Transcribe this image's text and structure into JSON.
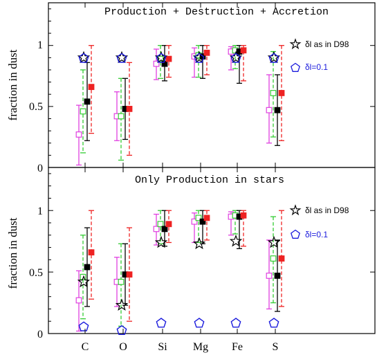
{
  "chart_data": [
    {
      "type": "scatter",
      "title": "Production + Destruction + Accretion",
      "ylabel": "fraction in dust",
      "ylim": [
        0,
        1.35
      ],
      "yticks": [
        "0",
        "0.5",
        "1"
      ],
      "categories": [
        "C",
        "O",
        "Si",
        "Mg",
        "Fe",
        "S"
      ],
      "series": [
        {
          "key": "magenta",
          "color": "#e040e0",
          "dash": false,
          "values": [
            0.27,
            0.42,
            0.85,
            0.91,
            0.95,
            0.47
          ],
          "low": [
            0.02,
            0.22,
            0.72,
            0.74,
            0.8,
            0.2
          ],
          "high": [
            0.51,
            0.62,
            0.97,
            0.98,
            0.99,
            0.76
          ]
        },
        {
          "key": "green",
          "color": "#33cc33",
          "dash": true,
          "values": [
            0.46,
            0.42,
            0.89,
            0.92,
            0.96,
            0.61
          ],
          "low": [
            0.12,
            0.06,
            0.73,
            0.74,
            0.81,
            0.25
          ],
          "high": [
            0.8,
            0.73,
            1.0,
            1.0,
            1.0,
            0.95
          ]
        },
        {
          "key": "black",
          "color": "#000000",
          "dash": false,
          "values": [
            0.54,
            0.48,
            0.85,
            0.91,
            0.95,
            0.47
          ],
          "low": [
            0.22,
            0.23,
            0.71,
            0.73,
            0.69,
            0.18
          ],
          "high": [
            0.86,
            0.73,
            1.0,
            1.0,
            1.0,
            0.76
          ]
        },
        {
          "key": "red",
          "color": "#ee2222",
          "dash": true,
          "values": [
            0.66,
            0.48,
            0.89,
            0.94,
            0.96,
            0.61
          ],
          "low": [
            0.28,
            0.1,
            0.74,
            0.76,
            0.71,
            0.22
          ],
          "high": [
            1.0,
            0.86,
            1.0,
            1.0,
            1.0,
            1.0
          ]
        },
        {
          "key": "star",
          "name": "δl as in D98",
          "color": "#000000",
          "values": [
            0.9,
            0.9,
            0.9,
            0.9,
            0.9,
            0.9
          ]
        },
        {
          "key": "pentagon",
          "name": "δl=0.1",
          "color": "#1a1adc",
          "values": [
            0.9,
            0.9,
            0.9,
            0.9,
            0.9,
            0.9
          ]
        }
      ]
    },
    {
      "type": "scatter",
      "title": "Only Production in stars",
      "ylabel": "fraction in dust",
      "ylim": [
        0,
        1.35
      ],
      "yticks": [
        "0",
        "0.5",
        "1"
      ],
      "categories": [
        "C",
        "O",
        "Si",
        "Mg",
        "Fe",
        "S"
      ],
      "series": [
        {
          "key": "magenta",
          "color": "#e040e0",
          "dash": false,
          "values": [
            0.27,
            0.42,
            0.85,
            0.91,
            0.95,
            0.47
          ],
          "low": [
            0.02,
            0.22,
            0.72,
            0.74,
            0.8,
            0.2
          ],
          "high": [
            0.51,
            0.62,
            0.97,
            0.98,
            0.99,
            0.76
          ]
        },
        {
          "key": "green",
          "color": "#33cc33",
          "dash": true,
          "values": [
            0.46,
            0.42,
            0.89,
            0.94,
            0.96,
            0.61
          ],
          "low": [
            0.12,
            0.06,
            0.73,
            0.74,
            0.81,
            0.25
          ],
          "high": [
            0.8,
            0.73,
            1.0,
            1.0,
            1.0,
            0.95
          ]
        },
        {
          "key": "black",
          "color": "#000000",
          "dash": false,
          "values": [
            0.54,
            0.48,
            0.85,
            0.91,
            0.95,
            0.47
          ],
          "low": [
            0.22,
            0.23,
            0.71,
            0.73,
            0.69,
            0.18
          ],
          "high": [
            0.86,
            0.73,
            1.0,
            1.0,
            1.0,
            0.76
          ]
        },
        {
          "key": "red",
          "color": "#ee2222",
          "dash": true,
          "values": [
            0.66,
            0.48,
            0.89,
            0.94,
            0.96,
            0.61
          ],
          "low": [
            0.28,
            0.1,
            0.74,
            0.76,
            0.71,
            0.22
          ],
          "high": [
            1.0,
            0.86,
            1.0,
            1.0,
            1.0,
            1.0
          ]
        },
        {
          "key": "star",
          "name": "δl as in D98",
          "color": "#000000",
          "values": [
            0.42,
            0.23,
            0.74,
            0.73,
            0.75,
            0.74
          ]
        },
        {
          "key": "pentagon",
          "name": "δl=0.1",
          "color": "#1a1adc",
          "values": [
            0.06,
            0.03,
            0.09,
            0.09,
            0.09,
            0.09
          ]
        }
      ]
    }
  ]
}
